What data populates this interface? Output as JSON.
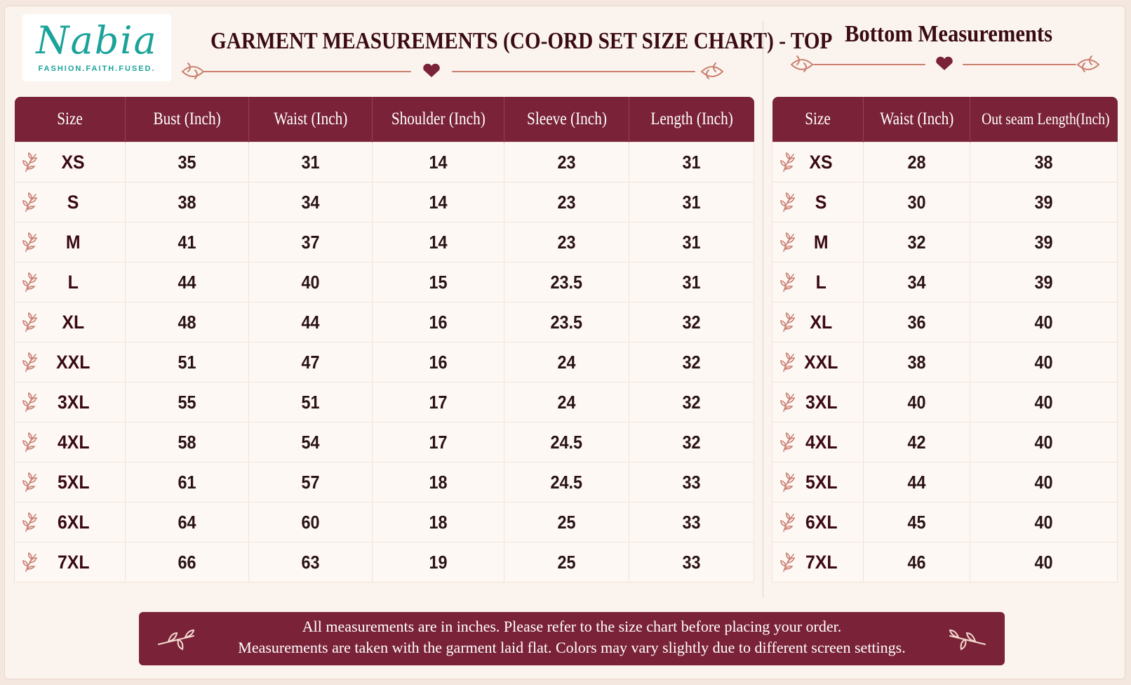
{
  "brand": {
    "name": "Nabia",
    "tagline": "FASHION.FAITH.FUSED."
  },
  "top": {
    "title": "GARMENT MEASUREMENTS (CO-ORD SET SIZE CHART) - TOP",
    "headers": [
      "Size",
      "Bust (Inch)",
      "Waist (Inch)",
      "Shoulder (Inch)",
      "Sleeve (Inch)",
      "Length (Inch)"
    ],
    "rows": [
      [
        "XS",
        "35",
        "31",
        "14",
        "23",
        "31"
      ],
      [
        "S",
        "38",
        "34",
        "14",
        "23",
        "31"
      ],
      [
        "M",
        "41",
        "37",
        "14",
        "23",
        "31"
      ],
      [
        "L",
        "44",
        "40",
        "15",
        "23.5",
        "31"
      ],
      [
        "XL",
        "48",
        "44",
        "16",
        "23.5",
        "32"
      ],
      [
        "XXL",
        "51",
        "47",
        "16",
        "24",
        "32"
      ],
      [
        "3XL",
        "55",
        "51",
        "17",
        "24",
        "32"
      ],
      [
        "4XL",
        "58",
        "54",
        "17",
        "24.5",
        "32"
      ],
      [
        "5XL",
        "61",
        "57",
        "18",
        "24.5",
        "33"
      ],
      [
        "6XL",
        "64",
        "60",
        "18",
        "25",
        "33"
      ],
      [
        "7XL",
        "66",
        "63",
        "19",
        "25",
        "33"
      ]
    ]
  },
  "bottom": {
    "title": "Bottom Measurements",
    "headers": [
      "Size",
      "Waist (Inch)",
      "Out seam Length(Inch)"
    ],
    "rows": [
      [
        "XS",
        "28",
        "38"
      ],
      [
        "S",
        "30",
        "39"
      ],
      [
        "M",
        "32",
        "39"
      ],
      [
        "L",
        "34",
        "39"
      ],
      [
        "XL",
        "36",
        "40"
      ],
      [
        "XXL",
        "38",
        "40"
      ],
      [
        "3XL",
        "40",
        "40"
      ],
      [
        "4XL",
        "42",
        "40"
      ],
      [
        "5XL",
        "44",
        "40"
      ],
      [
        "6XL",
        "45",
        "40"
      ],
      [
        "7XL",
        "46",
        "40"
      ]
    ]
  },
  "note": {
    "line1": "All measurements are in inches. Please refer to the size chart before placing your order.",
    "line2": "Measurements are taken with the garment laid flat. Colors may vary slightly due to different screen settings."
  },
  "colors": {
    "accent": "#7a2237",
    "brand": "#1aa39a",
    "ornament": "#c98070",
    "background": "#fbf4ee"
  }
}
